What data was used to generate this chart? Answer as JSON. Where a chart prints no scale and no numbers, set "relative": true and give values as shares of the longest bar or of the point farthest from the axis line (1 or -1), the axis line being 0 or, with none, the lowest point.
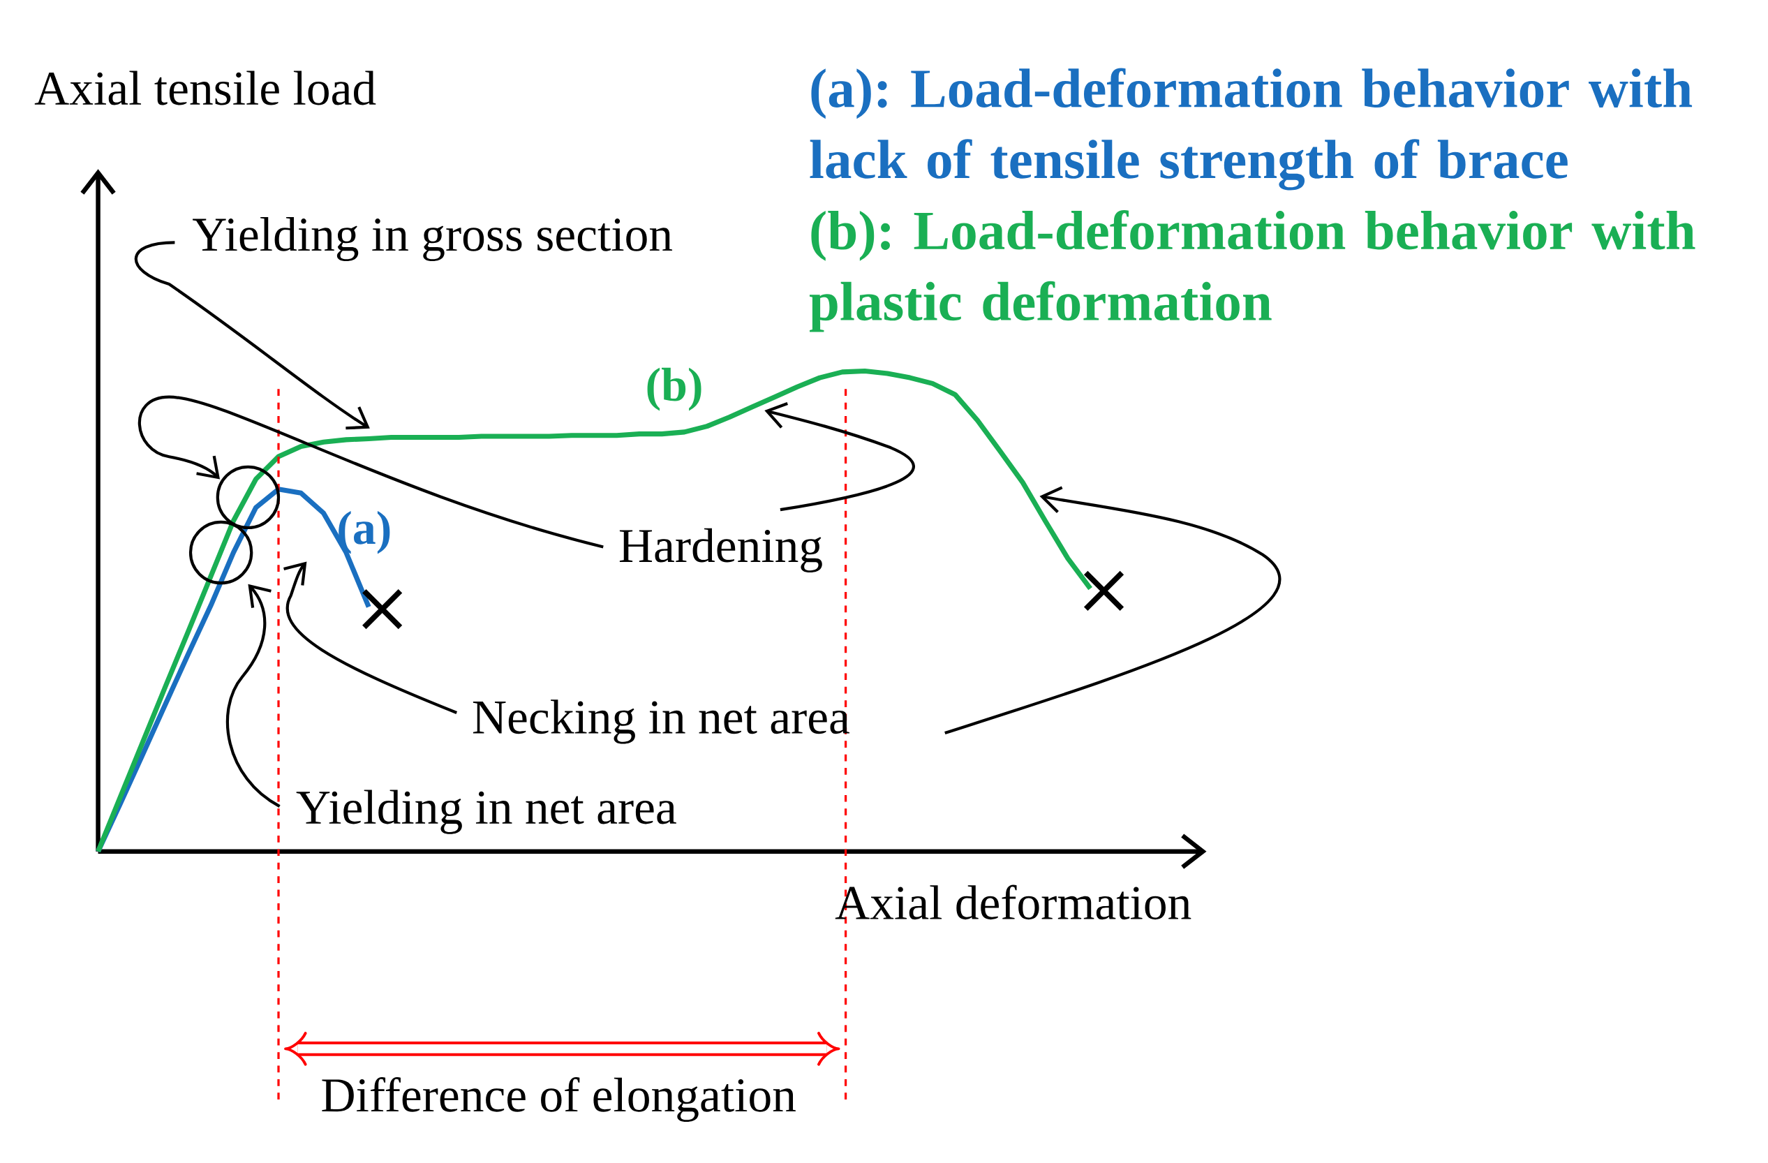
{
  "chart_data": {
    "type": "line",
    "relative": true,
    "title": "(a): Load-deformation behavior with lack of tensile strength of brace",
    "subtitle": "(b): Load-deformation behavior with plastic deformation",
    "xlabel": "Axial deformation",
    "annotations": [
      "Yielding in gross section",
      "Hardening",
      "Necking in net area",
      "Yielding in net area",
      "Axial tensile load",
      "Difference of elongation"
    ],
    "categories": [
      null,
      null,
      null,
      null,
      null,
      null,
      null,
      null,
      null,
      null,
      null,
      null,
      null,
      null,
      null,
      null,
      null,
      null,
      null,
      null,
      null,
      null,
      null,
      null,
      null,
      null,
      null,
      null,
      null,
      null,
      null,
      null,
      null,
      null,
      null,
      null,
      null,
      null,
      null,
      null,
      null,
      null,
      null,
      null,
      null
    ],
    "series": [
      {
        "name": "(a)",
        "color": "#1a6fc0",
        "values": [
          0,
          0.101,
          0.204,
          0.308,
          0.411,
          0.512,
          0.622,
          0.716,
          0.754,
          0.746,
          0.704,
          0.622,
          0.509,
          null,
          null,
          null,
          null,
          null,
          null,
          null,
          null,
          null,
          null,
          null,
          null,
          null,
          null,
          null,
          null,
          null,
          null,
          null,
          null,
          null,
          null,
          null,
          null,
          null,
          null,
          null,
          null,
          null,
          null,
          null,
          null
        ]
      },
      {
        "name": "(b)",
        "color": "#1aaf54",
        "values": [
          0,
          0.115,
          0.23,
          0.345,
          0.458,
          0.573,
          0.688,
          0.775,
          0.822,
          0.843,
          0.852,
          0.857,
          0.859,
          0.862,
          0.862,
          0.862,
          0.862,
          0.864,
          0.864,
          0.864,
          0.864,
          0.866,
          0.866,
          0.866,
          0.869,
          0.869,
          0.873,
          0.885,
          0.904,
          0.925,
          0.946,
          0.967,
          0.986,
          0.998,
          1,
          0.995,
          0.986,
          0.974,
          0.951,
          0.897,
          0.833,
          0.768,
          0.688,
          0.61,
          0.547
        ]
      }
    ]
  }
}
